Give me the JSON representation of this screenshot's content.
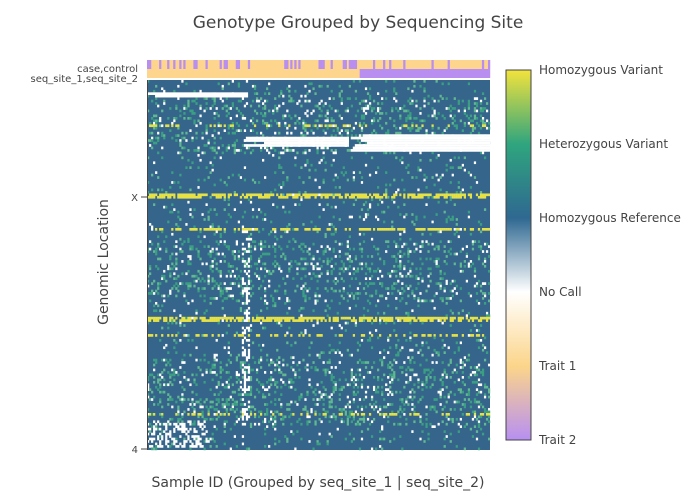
{
  "chart_data": {
    "type": "heatmap",
    "title": "Genotype Grouped by Sequencing Site",
    "xlabel": "Sample ID (Grouped by seq_site_1 | seq_site_2)",
    "ylabel": "Genomic Location",
    "y_ticks": [
      "X",
      "4"
    ],
    "annotation_tracks": [
      {
        "label": "case,control",
        "categories": [
          "Trait 1",
          "Trait 2"
        ]
      },
      {
        "label": "seq_site_1,seq_site_2",
        "categories": [
          "Trait 1",
          "Trait 2"
        ]
      }
    ],
    "group_split_fraction": 0.62,
    "colorbar": {
      "labels": [
        "Trait 2",
        "Trait 1",
        "No Call",
        "Homozygous Reference",
        "Heterozygous Variant",
        "Homozygous Variant"
      ],
      "colors": [
        "#b78ff2",
        "#fcd58a",
        "#ffffff",
        "#2f6891",
        "#2fa57e",
        "#f2e33c"
      ]
    },
    "colors": {
      "hom_ref": "#36658c",
      "het": "#3b9f82",
      "het_light": "#62b890",
      "hom_var": "#e6e246",
      "no_call": "#ffffff",
      "trait1": "#fdd58c",
      "trait2": "#b88ef0"
    }
  }
}
